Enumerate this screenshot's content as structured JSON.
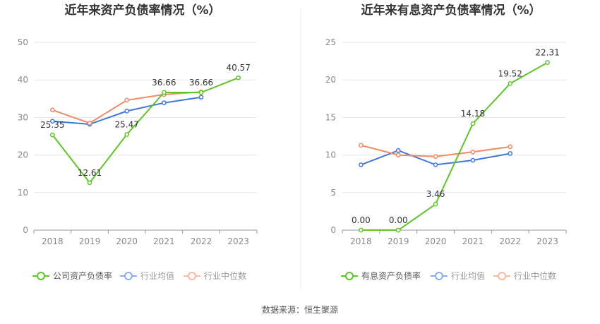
{
  "source_label": "数据来源：恒生聚源",
  "chart_data": [
    {
      "type": "line",
      "title": "近年来资产负债率情况（%）",
      "categories": [
        "2018",
        "2019",
        "2020",
        "2021",
        "2022",
        "2023"
      ],
      "yticks": [
        "0",
        "10",
        "20",
        "30",
        "40",
        "50"
      ],
      "ylim": [
        0,
        50
      ],
      "grid": true,
      "legend_position": "bottom",
      "series": [
        {
          "name": "公司资产负债率",
          "color": "#5ec42a",
          "values": [
            25.35,
            12.61,
            25.47,
            36.66,
            36.66,
            40.57
          ],
          "labels": [
            "25.35",
            "12.61",
            "25.47",
            "36.66",
            "36.66",
            "40.57"
          ]
        },
        {
          "name": "行业均值",
          "color": "#3f78d6",
          "values": [
            29.0,
            28.2,
            31.7,
            33.9,
            35.4,
            null
          ]
        },
        {
          "name": "行业中位数",
          "color": "#ef8a64",
          "values": [
            32.0,
            28.5,
            34.6,
            36.1,
            36.8,
            null
          ]
        }
      ]
    },
    {
      "type": "line",
      "title": "近年来有息资产负债率情况（%）",
      "categories": [
        "2018",
        "2019",
        "2020",
        "2021",
        "2022",
        "2023"
      ],
      "yticks": [
        "0",
        "5",
        "10",
        "15",
        "20",
        "25"
      ],
      "ylim": [
        0,
        25
      ],
      "grid": true,
      "legend_position": "bottom",
      "series": [
        {
          "name": "有息资产负债率",
          "color": "#5ec42a",
          "values": [
            0.0,
            0.0,
            3.46,
            14.18,
            19.52,
            22.31
          ],
          "labels": [
            "0.00",
            "0.00",
            "3.46",
            "14.18",
            "19.52",
            "22.31"
          ]
        },
        {
          "name": "行业均值",
          "color": "#3f78d6",
          "values": [
            8.7,
            10.6,
            8.7,
            9.3,
            10.2,
            null
          ]
        },
        {
          "name": "行业中位数",
          "color": "#ef8a64",
          "values": [
            11.3,
            10.0,
            9.8,
            10.4,
            11.1,
            null
          ]
        }
      ]
    }
  ]
}
